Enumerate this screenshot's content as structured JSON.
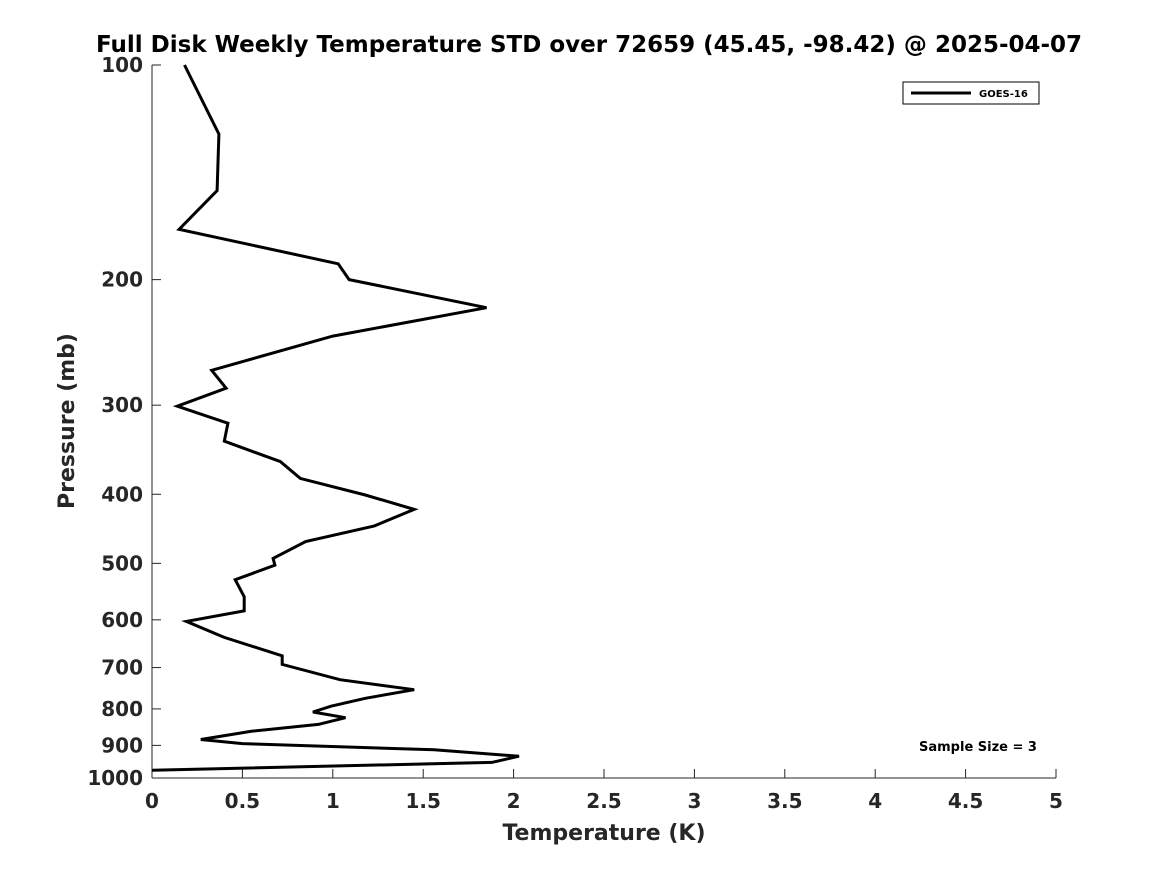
{
  "chart_data": {
    "type": "line",
    "title": "Full Disk Weekly Temperature STD over 72659 (45.45, -98.42) @ 2025-04-07",
    "xlabel": "Temperature (K)",
    "ylabel": "Pressure (mb)",
    "xlim": [
      0,
      5
    ],
    "ylim": [
      100,
      1000
    ],
    "yscale": "log",
    "y_reversed": true,
    "grid": false,
    "xticks": [
      0,
      0.5,
      1,
      1.5,
      2,
      2.5,
      3,
      3.5,
      4,
      4.5,
      5
    ],
    "xtick_labels": [
      "0",
      "0.5",
      "1",
      "1.5",
      "2",
      "2.5",
      "3",
      "3.5",
      "4",
      "4.5",
      "5"
    ],
    "yticks": [
      100,
      200,
      300,
      400,
      500,
      600,
      700,
      800,
      900,
      1000
    ],
    "ytick_labels": [
      "100",
      "200",
      "300",
      "400",
      "500",
      "600",
      "700",
      "800",
      "900",
      "1000"
    ],
    "legend": {
      "position": "top-right",
      "entries": [
        "GOES-16"
      ]
    },
    "annotation": "Sample Size = 3",
    "series": [
      {
        "name": "GOES-16",
        "color": "#000000",
        "points": [
          [
            0.18,
            100
          ],
          [
            0.37,
            125
          ],
          [
            0.36,
            150
          ],
          [
            0.15,
            170
          ],
          [
            1.03,
            190
          ],
          [
            1.09,
            200
          ],
          [
            1.85,
            219
          ],
          [
            1.0,
            240
          ],
          [
            0.33,
            268
          ],
          [
            0.41,
            284
          ],
          [
            0.14,
            301
          ],
          [
            0.42,
            318
          ],
          [
            0.4,
            337
          ],
          [
            0.71,
            360
          ],
          [
            0.82,
            380
          ],
          [
            1.18,
            401
          ],
          [
            1.45,
            420
          ],
          [
            1.23,
            443
          ],
          [
            0.85,
            466
          ],
          [
            0.67,
            492
          ],
          [
            0.68,
            503
          ],
          [
            0.46,
            527
          ],
          [
            0.51,
            557
          ],
          [
            0.51,
            583
          ],
          [
            0.19,
            603
          ],
          [
            0.4,
            635
          ],
          [
            0.72,
            674
          ],
          [
            0.72,
            693
          ],
          [
            1.04,
            728
          ],
          [
            1.45,
            752
          ],
          [
            1.18,
            773
          ],
          [
            0.99,
            793
          ],
          [
            0.89,
            808
          ],
          [
            1.07,
            823
          ],
          [
            0.92,
            841
          ],
          [
            0.55,
            860
          ],
          [
            0.27,
            883
          ],
          [
            0.5,
            895
          ],
          [
            1.56,
            913
          ],
          [
            2.03,
            932
          ],
          [
            1.88,
            951
          ],
          [
            0.0,
            975
          ]
        ]
      }
    ]
  }
}
